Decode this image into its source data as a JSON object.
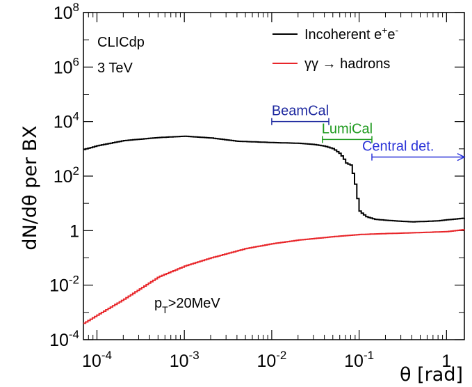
{
  "chart_data": {
    "type": "line",
    "x_scale": "log",
    "y_scale": "log",
    "xlim": [
      7e-05,
      1.6
    ],
    "ylim": [
      0.0001,
      100000000
    ],
    "xlabel": "θ [rad]",
    "ylabel": "dN/dθ per BX",
    "x_ticks": [
      {
        "value": 0.0001,
        "base": "10",
        "exp": "-4"
      },
      {
        "value": 0.001,
        "base": "10",
        "exp": "-3"
      },
      {
        "value": 0.01,
        "base": "10",
        "exp": "-2"
      },
      {
        "value": 0.1,
        "base": "10",
        "exp": "-1"
      },
      {
        "value": 1,
        "base": "1",
        "exp": ""
      }
    ],
    "y_ticks": [
      {
        "value": 0.0001,
        "base": "10",
        "exp": "-4"
      },
      {
        "value": 0.01,
        "base": "10",
        "exp": "-2"
      },
      {
        "value": 1,
        "base": "1",
        "exp": ""
      },
      {
        "value": 100,
        "base": "10",
        "exp": "2"
      },
      {
        "value": 10000,
        "base": "10",
        "exp": "4"
      },
      {
        "value": 1000000,
        "base": "10",
        "exp": "6"
      },
      {
        "value": 100000000,
        "base": "10",
        "exp": "8"
      }
    ],
    "annotations": {
      "experiment": "CLICdp",
      "energy": "3 TeV",
      "cut_main": "p",
      "cut_sub": "T",
      "cut_rest": ">20MeV"
    },
    "legend": {
      "placement": "top-right",
      "entries": [
        {
          "label_main": "Incoherent e",
          "sup1": "+",
          "mid": "e",
          "sup2": "-",
          "color": "#000000"
        },
        {
          "label": "γγ → hadrons",
          "color": "#e8262a"
        }
      ]
    },
    "series": [
      {
        "label": "Incoherent e+e-",
        "color": "#000000",
        "points": [
          [
            7e-05,
            950
          ],
          [
            0.0001,
            1300
          ],
          [
            0.0002,
            2000
          ],
          [
            0.0005,
            2600
          ],
          [
            0.001,
            2900
          ],
          [
            0.002,
            2500
          ],
          [
            0.004,
            1900
          ],
          [
            0.01,
            1700
          ],
          [
            0.02,
            1600
          ],
          [
            0.03,
            1450
          ],
          [
            0.04,
            1250
          ],
          [
            0.05,
            1000
          ],
          [
            0.06,
            650
          ],
          [
            0.065,
            450
          ],
          [
            0.07,
            300
          ],
          [
            0.08,
            250
          ],
          [
            0.09,
            40
          ],
          [
            0.095,
            12
          ],
          [
            0.1,
            5
          ],
          [
            0.12,
            3.2
          ],
          [
            0.15,
            2.6
          ],
          [
            0.2,
            2.4
          ],
          [
            0.3,
            2.2
          ],
          [
            0.4,
            2.1
          ],
          [
            0.6,
            2.2
          ],
          [
            0.8,
            2.3
          ],
          [
            1,
            2.5
          ],
          [
            1.3,
            2.7
          ],
          [
            1.6,
            2.9
          ]
        ]
      },
      {
        "label": "γγ → hadrons",
        "color": "#e8262a",
        "points": [
          [
            7e-05,
            0.0004
          ],
          [
            0.0001,
            0.0008
          ],
          [
            0.0002,
            0.003
          ],
          [
            0.0005,
            0.02
          ],
          [
            0.001,
            0.05
          ],
          [
            0.002,
            0.1
          ],
          [
            0.005,
            0.22
          ],
          [
            0.01,
            0.33
          ],
          [
            0.02,
            0.45
          ],
          [
            0.05,
            0.6
          ],
          [
            0.1,
            0.72
          ],
          [
            0.2,
            0.78
          ],
          [
            0.5,
            0.85
          ],
          [
            1,
            0.92
          ],
          [
            1.6,
            1.1
          ]
        ]
      }
    ],
    "regions": [
      {
        "label": "BeamCal",
        "x_start": 0.01,
        "x_end": 0.045,
        "y_value": 10000,
        "color": "#1f2aa0",
        "arrow": false
      },
      {
        "label": "LumiCal",
        "x_start": 0.038,
        "x_end": 0.14,
        "y_value": 2200,
        "color": "#1e9a1e",
        "arrow": false
      },
      {
        "label": "Central det.",
        "x_start": 0.14,
        "x_end": 1.6,
        "y_value": 500,
        "color": "#2a33d8",
        "arrow": true
      }
    ]
  }
}
